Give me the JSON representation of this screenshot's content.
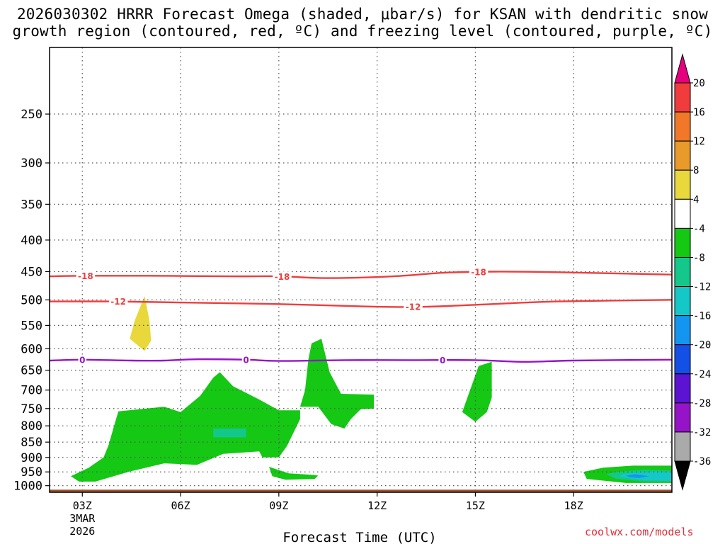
{
  "title_line1": "2026030302 HRRR Forecast Omega (shaded, μbar/s) for KSAN with dendritic snow",
  "title_line2": "growth region (contoured, red, ºC) and freezing level (contoured, purple, ºC)",
  "footer": "coolwx.com/models",
  "chart_data": {
    "type": "time-height cross section",
    "title": "2026030302 HRRR Forecast Omega (shaded, μbar/s) for KSAN with dendritic snow growth region (contoured, red, ºC) and freezing level (contoured, purple, ºC)",
    "xlabel": "Forecast Time (UTC)",
    "ylabel": "",
    "x_ticks": [
      "03Z",
      "06Z",
      "09Z",
      "12Z",
      "15Z",
      "18Z"
    ],
    "x_tick_hours": [
      3,
      6,
      9,
      12,
      15,
      18
    ],
    "x_date_label": [
      "3MAR",
      "2026"
    ],
    "xlim_hours": [
      2,
      21
    ],
    "y_ticks": [
      250,
      300,
      350,
      400,
      450,
      500,
      550,
      600,
      650,
      700,
      750,
      800,
      850,
      900,
      950,
      1000
    ],
    "ylim_hPa": [
      1025,
      195
    ],
    "y_scale": "log-pressure",
    "grid": true,
    "colorbar": {
      "levels": [
        20,
        16,
        12,
        8,
        4,
        -4,
        -8,
        -12,
        -16,
        -20,
        -24,
        -28,
        -32,
        -36
      ],
      "colors": [
        "#e6007e",
        "#f03c3c",
        "#f07828",
        "#e89a2a",
        "#e8d83c",
        "#ffffff",
        "#14c814",
        "#14c88c",
        "#14c8c8",
        "#1496f0",
        "#1450e6",
        "#5a14d2",
        "#9614c8",
        "#aaaaaa",
        "#000000"
      ]
    },
    "contours": [
      {
        "label": "-18",
        "color": "#f03c3c",
        "points": [
          [
            2.0,
            458
          ],
          [
            3.0,
            457
          ],
          [
            5.0,
            457
          ],
          [
            7.5,
            458
          ],
          [
            9.0,
            458
          ],
          [
            10.5,
            461
          ],
          [
            12.5,
            458
          ],
          [
            14.0,
            452
          ],
          [
            15.5,
            450
          ],
          [
            17.5,
            451
          ],
          [
            21.0,
            455
          ]
        ],
        "label_hours": [
          3.1,
          9.1,
          15.1
        ]
      },
      {
        "label": "-12",
        "color": "#f03c3c",
        "points": [
          [
            2.0,
            503
          ],
          [
            4.0,
            503
          ],
          [
            6.0,
            505
          ],
          [
            9.0,
            508
          ],
          [
            12.0,
            513
          ],
          [
            13.5,
            513
          ],
          [
            15.5,
            508
          ],
          [
            17.5,
            503
          ],
          [
            21.0,
            500
          ]
        ],
        "label_hours": [
          4.1,
          13.1
        ]
      },
      {
        "label": "0",
        "color": "#9614c8",
        "points": [
          [
            2.0,
            627
          ],
          [
            3.0,
            625
          ],
          [
            4.5,
            627
          ],
          [
            5.5,
            627
          ],
          [
            6.5,
            624
          ],
          [
            8.0,
            625
          ],
          [
            9.0,
            628
          ],
          [
            11.0,
            626
          ],
          [
            13.0,
            626
          ],
          [
            15.0,
            626
          ],
          [
            16.5,
            630
          ],
          [
            18.0,
            627
          ],
          [
            21.0,
            625
          ]
        ],
        "label_hours": [
          3.0,
          8.0,
          14.0
        ]
      }
    ],
    "shaded_regions": [
      {
        "level": "4 to 8",
        "color": "#e8d83c",
        "points": [
          [
            4.9,
            493
          ],
          [
            4.6,
            540
          ],
          [
            4.45,
            578
          ],
          [
            4.9,
            605
          ],
          [
            5.1,
            582
          ],
          [
            5.05,
            540
          ]
        ]
      },
      {
        "level": "-4 to -8",
        "color": "#14c814",
        "points": [
          [
            2.65,
            965
          ],
          [
            3.2,
            935
          ],
          [
            3.65,
            900
          ],
          [
            3.8,
            860
          ],
          [
            4.0,
            790
          ],
          [
            4.1,
            758
          ],
          [
            5.5,
            745
          ],
          [
            6.0,
            760
          ],
          [
            6.6,
            715
          ],
          [
            7.0,
            668
          ],
          [
            7.2,
            655
          ],
          [
            7.6,
            690
          ],
          [
            8.4,
            725
          ],
          [
            9.0,
            755
          ],
          [
            9.65,
            755
          ],
          [
            9.65,
            780
          ],
          [
            9.25,
            862
          ],
          [
            9.0,
            900
          ],
          [
            8.5,
            900
          ],
          [
            8.4,
            880
          ],
          [
            7.3,
            888
          ],
          [
            6.5,
            925
          ],
          [
            5.5,
            920
          ],
          [
            4.4,
            950
          ],
          [
            3.4,
            985
          ],
          [
            2.9,
            985
          ]
        ]
      },
      {
        "level": "-8 to -12",
        "color": "#14c88c",
        "points": [
          [
            7.0,
            808
          ],
          [
            8.0,
            808
          ],
          [
            8.0,
            835
          ],
          [
            7.0,
            835
          ]
        ]
      },
      {
        "level": "-4 to -8",
        "color": "#14c814",
        "points": [
          [
            9.9,
            625
          ],
          [
            10.0,
            588
          ],
          [
            10.3,
            578
          ],
          [
            10.55,
            655
          ],
          [
            10.9,
            710
          ],
          [
            11.9,
            712
          ],
          [
            11.9,
            750
          ],
          [
            11.5,
            752
          ],
          [
            11.2,
            780
          ],
          [
            11.0,
            808
          ],
          [
            10.6,
            795
          ],
          [
            10.2,
            745
          ],
          [
            9.65,
            745
          ],
          [
            9.8,
            700
          ]
        ]
      },
      {
        "level": "-4 to -8",
        "color": "#14c814",
        "points": [
          [
            14.6,
            760
          ],
          [
            15.1,
            640
          ],
          [
            15.5,
            630
          ],
          [
            15.5,
            720
          ],
          [
            15.35,
            760
          ],
          [
            15.0,
            788
          ]
        ]
      },
      {
        "level": "-4 to -8",
        "color": "#14c814",
        "points": [
          [
            8.7,
            932
          ],
          [
            9.3,
            955
          ],
          [
            10.0,
            960
          ],
          [
            10.2,
            963
          ],
          [
            10.1,
            975
          ],
          [
            9.2,
            978
          ],
          [
            8.8,
            965
          ]
        ]
      },
      {
        "level": "-4 to -8",
        "color": "#14c814",
        "points": [
          [
            21.0,
            928
          ],
          [
            19.8,
            928
          ],
          [
            18.9,
            935
          ],
          [
            18.3,
            950
          ],
          [
            18.4,
            975
          ],
          [
            19.6,
            990
          ],
          [
            21.0,
            990
          ]
        ]
      },
      {
        "level": "-8 to -12",
        "color": "#14c88c",
        "points": [
          [
            21.0,
            945
          ],
          [
            20.2,
            942
          ],
          [
            19.3,
            950
          ],
          [
            19.0,
            958
          ],
          [
            19.3,
            975
          ],
          [
            20.2,
            985
          ],
          [
            21.0,
            985
          ]
        ]
      },
      {
        "level": "-12 to -16",
        "color": "#14c8c8",
        "points": [
          [
            20.4,
            950
          ],
          [
            19.5,
            957
          ],
          [
            19.4,
            968
          ],
          [
            20.2,
            980
          ],
          [
            21.0,
            982
          ],
          [
            21.0,
            952
          ]
        ]
      },
      {
        "level": "-16 to -20",
        "color": "#1496f0",
        "points": [
          [
            19.6,
            963
          ],
          [
            19.9,
            958
          ],
          [
            20.3,
            965
          ],
          [
            20.0,
            972
          ],
          [
            19.7,
            969
          ]
        ]
      }
    ],
    "ground": {
      "color": "#a0522d",
      "top_pressure": 1015
    }
  }
}
